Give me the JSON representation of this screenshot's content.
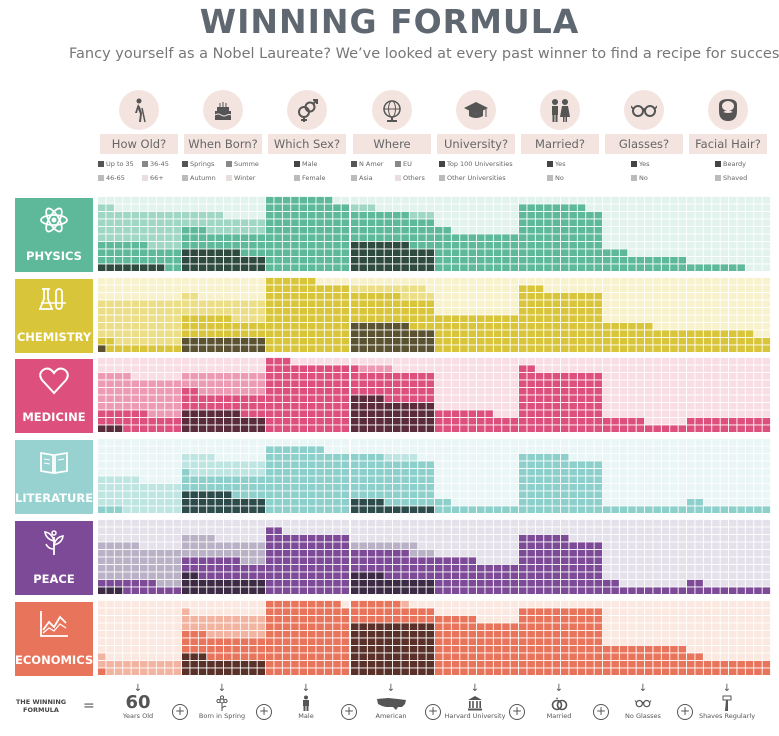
{
  "title": "WINNING FORMULA",
  "subtitle": "Fancy yourself as a Nobel Laureate? We’ve looked at every past winner to find a recipe for success",
  "questions": [
    {
      "label": "How Old?",
      "icon": "walking-elder-icon",
      "legend": [
        "Up to 35",
        "36-45",
        "46-65",
        "66+"
      ]
    },
    {
      "label": "When Born?",
      "icon": "birthday-cake-icon",
      "legend": [
        "Springs",
        "Summe",
        "Autumn",
        "Winter"
      ]
    },
    {
      "label": "Which Sex?",
      "icon": "gender-symbols-icon",
      "legend": [
        "Male",
        "Female"
      ]
    },
    {
      "label": "Where",
      "icon": "globe-icon",
      "legend": [
        "N Amer",
        "EU",
        "Asia",
        "Others"
      ]
    },
    {
      "label": "University?",
      "icon": "graduation-cap-icon",
      "legend": [
        "Top 100 Universities",
        "Other Universities"
      ]
    },
    {
      "label": "Married?",
      "icon": "couple-icon",
      "legend": [
        "Yes",
        "No"
      ]
    },
    {
      "label": "Glasses?",
      "icon": "glasses-icon",
      "legend": [
        "Yes",
        "No"
      ]
    },
    {
      "label": "Facial Hair?",
      "icon": "beard-icon",
      "legend": [
        "Beardy",
        "Shaved"
      ]
    }
  ],
  "categories": [
    {
      "name": "PHYSICS",
      "icon": "atom-icon",
      "color": "#5db99a",
      "shades": [
        "#2f4a3f",
        "#5db99a",
        "#9fd6c4",
        "#e2f2ec"
      ]
    },
    {
      "name": "CHEMISTRY",
      "icon": "lab-flasks-icon",
      "color": "#d9c53a",
      "shades": [
        "#5a5231",
        "#d9c53a",
        "#ebde86",
        "#f7f1cc"
      ]
    },
    {
      "name": "MEDICINE",
      "icon": "heart-icon",
      "color": "#dd4f7d",
      "shades": [
        "#5a2b3b",
        "#dd4f7d",
        "#ed9bb4",
        "#f8dde5"
      ]
    },
    {
      "name": "LITERATURE",
      "icon": "open-book-icon",
      "color": "#97d1d0",
      "shades": [
        "#2e4b4b",
        "#8ccfcb",
        "#bfe5e3",
        "#eaf6f6"
      ]
    },
    {
      "name": "PEACE",
      "icon": "dove-olive-icon",
      "color": "#7d4a97",
      "shades": [
        "#3d2b45",
        "#7d4a97",
        "#b9b1c6",
        "#e5e1eb"
      ]
    },
    {
      "name": "ECONOMICS",
      "icon": "line-chart-icon",
      "color": "#e8745b",
      "shades": [
        "#5a3128",
        "#e8745b",
        "#f2b3a0",
        "#fbe8e0"
      ]
    }
  ],
  "chart_data": {
    "type": "waffle",
    "unit": "cells out of 100 per category/question",
    "questions": [
      "How Old?",
      "When Born?",
      "Which Sex?",
      "Where",
      "University?",
      "Married?",
      "Glasses?",
      "Facial Hair?"
    ],
    "categories": [
      "PHYSICS",
      "CHEMISTRY",
      "MEDICINE",
      "LITERATURE",
      "PEACE",
      "ECONOMICS"
    ],
    "values": [
      [
        [
          8,
          28,
          46,
          18
        ],
        [
          27,
          26,
          22,
          25
        ],
        [
          98,
          2
        ],
        [
          37,
          40,
          6,
          17
        ],
        [
          52,
          48
        ],
        [
          88,
          12
        ],
        [
          23,
          77
        ],
        [
          7,
          93
        ]
      ],
      [
        [
          1,
          11,
          58,
          30
        ],
        [
          20,
          26,
          26,
          28
        ],
        [
          96,
          4
        ],
        [
          37,
          39,
          13,
          11
        ],
        [
          50,
          50
        ],
        [
          83,
          17
        ],
        [
          36,
          64
        ],
        [
          28,
          72
        ]
      ],
      [
        [
          3,
          23,
          48,
          26
        ],
        [
          27,
          25,
          28,
          20
        ],
        [
          93,
          7
        ],
        [
          44,
          37,
          4,
          15
        ],
        [
          27,
          73
        ],
        [
          82,
          18
        ],
        [
          15,
          85
        ],
        [
          20,
          80
        ]
      ],
      [
        [
          0,
          3,
          42,
          55
        ],
        [
          26,
          25,
          23,
          26
        ],
        [
          87,
          13
        ],
        [
          14,
          60,
          4,
          22
        ],
        [
          12,
          88
        ],
        [
          76,
          24
        ],
        [
          10,
          90
        ],
        [
          12,
          88
        ]
      ],
      [
        [
          3,
          14,
          48,
          35
        ],
        [
          22,
          25,
          27,
          26
        ],
        [
          82,
          18
        ],
        [
          24,
          33,
          11,
          32
        ],
        [
          45,
          55
        ],
        [
          76,
          24
        ],
        [
          12,
          88
        ],
        [
          12,
          88
        ]
      ],
      [
        [
          0,
          1,
          20,
          79
        ],
        [
          23,
          30,
          28,
          19
        ],
        [
          99,
          1
        ],
        [
          70,
          26,
          1,
          3
        ],
        [
          75,
          25
        ],
        [
          90,
          10
        ],
        [
          40,
          60
        ],
        [
          22,
          78
        ]
      ]
    ]
  },
  "footer": {
    "formula_title": "THE WINNING FORMULA",
    "equals": "=",
    "plus": "+",
    "answers": [
      {
        "big": "60",
        "text": "Years Old",
        "icon": ""
      },
      {
        "big": "",
        "text": "Born in Spring",
        "icon": "flower-icon"
      },
      {
        "big": "",
        "text": "Male",
        "icon": "male-figure-icon"
      },
      {
        "big": "",
        "text": "American",
        "icon": "usa-map-icon"
      },
      {
        "big": "",
        "text": "Harvard University",
        "icon": "university-building-icon"
      },
      {
        "big": "",
        "text": "Married",
        "icon": "rings-icon"
      },
      {
        "big": "",
        "text": "No Glasses",
        "icon": "glasses-icon"
      },
      {
        "big": "",
        "text": "Shaves Regularly",
        "icon": "razor-icon"
      }
    ],
    "arrow": "↓"
  }
}
